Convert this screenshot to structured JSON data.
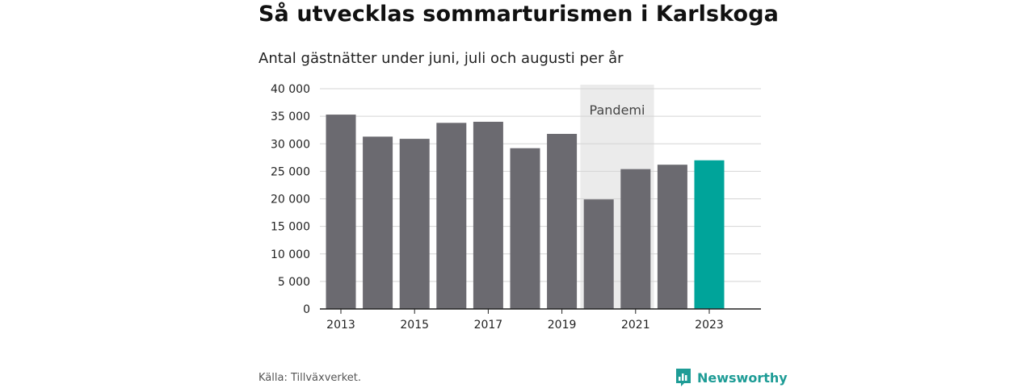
{
  "title": "Så utvecklas sommarturismen i Karlskoga",
  "subtitle": "Antal gästnätter under juni, juli och augusti per år",
  "source": "Källa: Tillväxverket.",
  "brand": "Newsworthy",
  "colors": {
    "bar": "#6b6a70",
    "highlight": "#00a49a",
    "band": "#ebebeb",
    "grid": "#d4d4d4",
    "axis": "#222222",
    "brand": "#1e9c96"
  },
  "chart_data": {
    "type": "bar",
    "categories": [
      "2013",
      "2014",
      "2015",
      "2016",
      "2017",
      "2018",
      "2019",
      "2020",
      "2021",
      "2022",
      "2023"
    ],
    "values": [
      35300,
      31300,
      30900,
      33800,
      34000,
      29200,
      31800,
      19900,
      25400,
      26200,
      27000
    ],
    "highlight_index": 10,
    "x_tick_labels": [
      "2013",
      "",
      "2015",
      "",
      "2017",
      "",
      "2019",
      "",
      "2021",
      "",
      "2023"
    ],
    "y_ticks": [
      0,
      5000,
      10000,
      15000,
      20000,
      25000,
      30000,
      35000,
      40000
    ],
    "y_tick_labels": [
      "0",
      "5 000",
      "10 000",
      "15 000",
      "20 000",
      "25 000",
      "30 000",
      "35 000",
      "40 000"
    ],
    "ylim": [
      0,
      40000
    ],
    "annotation": {
      "label": "Pandemi",
      "from_index": 7,
      "to_index": 8
    },
    "grid": true,
    "legend": false
  }
}
